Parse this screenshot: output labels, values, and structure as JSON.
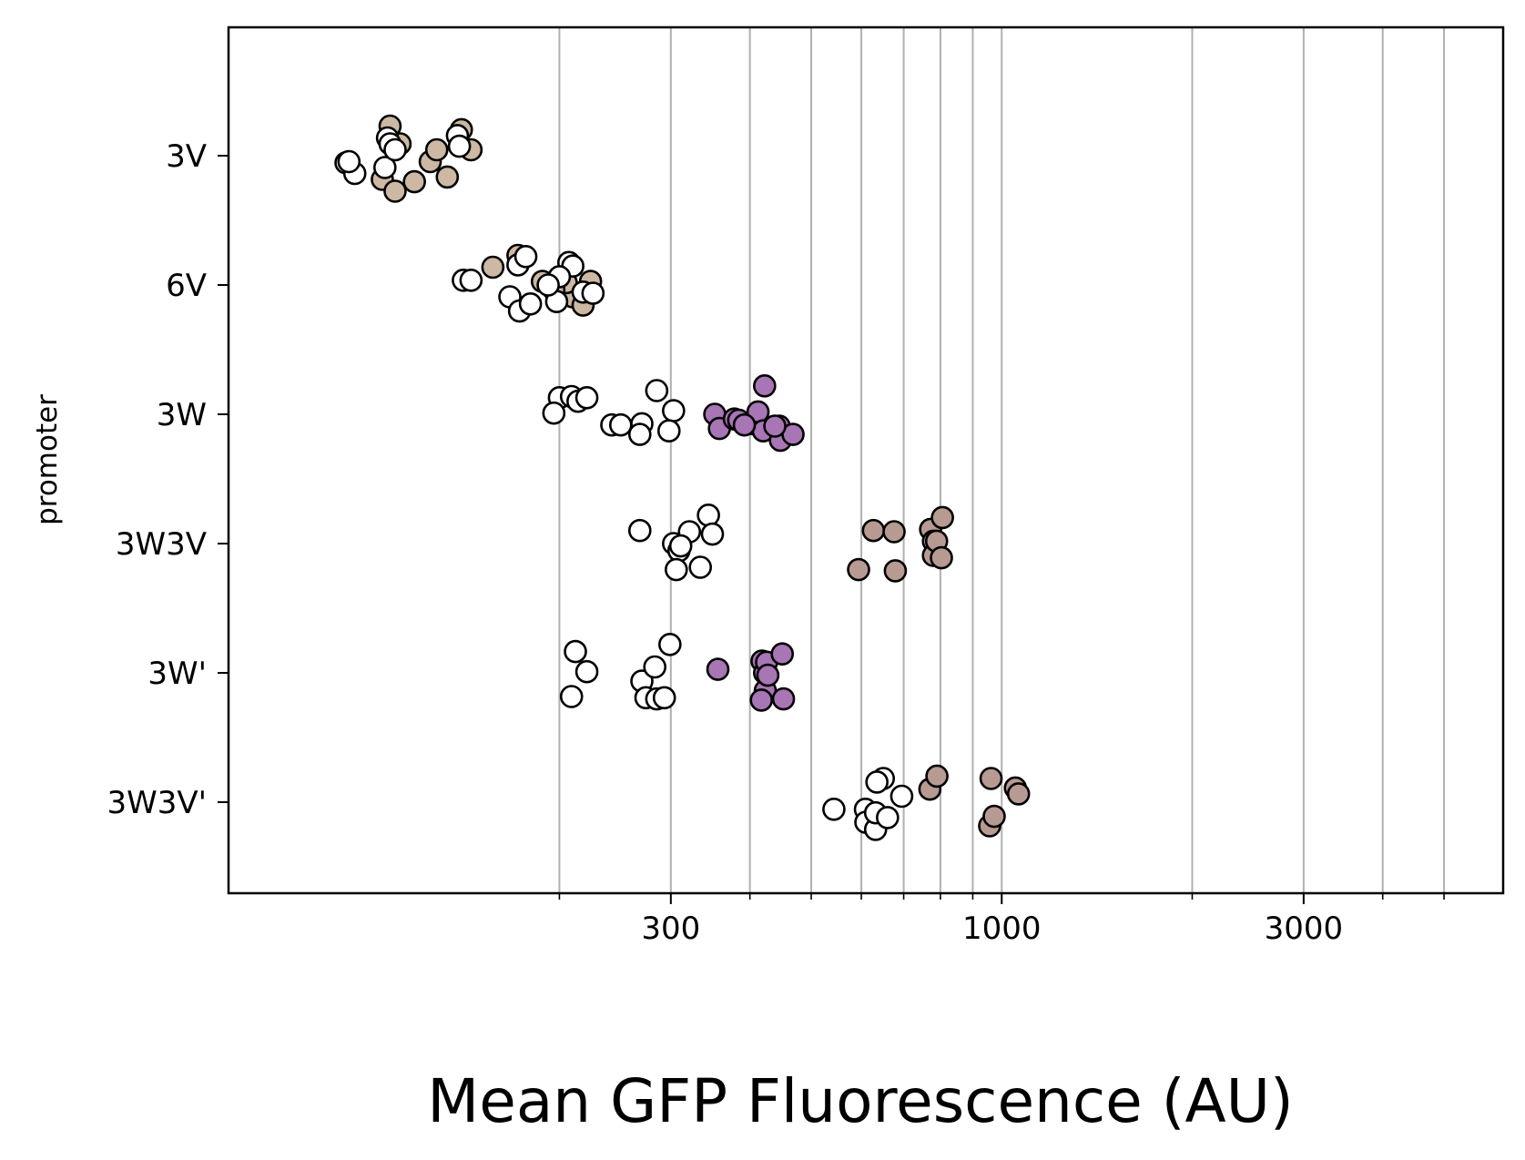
{
  "chart_data": {
    "type": "scatter",
    "title": "",
    "xlabel": "Mean GFP Fluorescence (AU)",
    "ylabel": "promoter",
    "x_scale": "log",
    "xlim": [
      60,
      6200
    ],
    "x_tick_labels": [
      "300",
      "1000",
      "3000"
    ],
    "x_ticks": [
      300,
      1000,
      3000
    ],
    "x_minor_gridlines": [
      200,
      400,
      500,
      600,
      700,
      800,
      900,
      2000,
      4000,
      5000
    ],
    "grid": "vertical gridlines at major and minor x ticks",
    "categories": [
      "3V",
      "6V",
      "3W",
      "3W3V",
      "3W'",
      "3W3V'"
    ],
    "colors": {
      "tan": "#ccb8a3",
      "purple": "#a875b5",
      "mauve": "#b79a92",
      "white": "#ffffff",
      "edge": "#000000",
      "grid": "#b0b0b0"
    },
    "series": [
      {
        "category": "3V",
        "fill": "#ccb8a3",
        "points": [
          {
            "x": 105,
            "o": -0.2
          },
          {
            "x": 112,
            "o": 0.1
          },
          {
            "x": 118,
            "o": -0.22
          },
          {
            "x": 108,
            "o": 0.25
          },
          {
            "x": 125,
            "o": -0.05
          },
          {
            "x": 128,
            "o": 0.05
          },
          {
            "x": 140,
            "o": 0.22
          },
          {
            "x": 133,
            "o": -0.18
          },
          {
            "x": 145,
            "o": 0.05
          },
          {
            "x": 110,
            "o": -0.3
          }
        ]
      },
      {
        "category": "3V",
        "fill": "#ffffff",
        "points": [
          {
            "x": 92,
            "o": -0.06
          },
          {
            "x": 95,
            "o": -0.15
          },
          {
            "x": 93,
            "o": -0.05
          },
          {
            "x": 107,
            "o": 0.15
          },
          {
            "x": 108,
            "o": 0.1
          },
          {
            "x": 106,
            "o": -0.1
          },
          {
            "x": 138,
            "o": 0.17
          },
          {
            "x": 139,
            "o": 0.08
          },
          {
            "x": 110,
            "o": 0.05
          }
        ]
      },
      {
        "category": "6V",
        "fill": "#ccb8a3",
        "points": [
          {
            "x": 157,
            "o": 0.15
          },
          {
            "x": 172,
            "o": 0.25
          },
          {
            "x": 188,
            "o": 0.03
          },
          {
            "x": 194,
            "o": 0.0
          },
          {
            "x": 210,
            "o": -0.1
          },
          {
            "x": 224,
            "o": 0.03
          },
          {
            "x": 218,
            "o": -0.17
          },
          {
            "x": 205,
            "o": 0.02
          },
          {
            "x": 196,
            "o": -0.04
          }
        ]
      },
      {
        "category": "6V",
        "fill": "#ffffff",
        "points": [
          {
            "x": 141,
            "o": 0.04
          },
          {
            "x": 145,
            "o": 0.04
          },
          {
            "x": 172,
            "o": 0.17
          },
          {
            "x": 177,
            "o": 0.24
          },
          {
            "x": 167,
            "o": -0.1
          },
          {
            "x": 173,
            "o": -0.22
          },
          {
            "x": 180,
            "o": -0.16
          },
          {
            "x": 207,
            "o": 0.19
          },
          {
            "x": 210,
            "o": 0.16
          },
          {
            "x": 200,
            "o": 0.07
          },
          {
            "x": 198,
            "o": -0.14
          },
          {
            "x": 218,
            "o": -0.06
          },
          {
            "x": 226,
            "o": -0.07
          },
          {
            "x": 192,
            "o": 0.0
          }
        ]
      },
      {
        "category": "3W",
        "fill": "#ffffff",
        "points": [
          {
            "x": 200,
            "o": 0.14
          },
          {
            "x": 196,
            "o": 0.01
          },
          {
            "x": 209,
            "o": 0.15
          },
          {
            "x": 214,
            "o": 0.11
          },
          {
            "x": 221,
            "o": 0.14
          },
          {
            "x": 242,
            "o": -0.09
          },
          {
            "x": 250,
            "o": -0.09
          },
          {
            "x": 270,
            "o": -0.08
          },
          {
            "x": 268,
            "o": -0.17
          },
          {
            "x": 285,
            "o": 0.2
          },
          {
            "x": 303,
            "o": 0.03
          },
          {
            "x": 298,
            "o": -0.14
          }
        ]
      },
      {
        "category": "3W",
        "fill": "#a875b5",
        "points": [
          {
            "x": 352,
            "o": 0.0
          },
          {
            "x": 358,
            "o": -0.12
          },
          {
            "x": 378,
            "o": -0.04
          },
          {
            "x": 384,
            "o": -0.05
          },
          {
            "x": 405,
            "o": -0.08
          },
          {
            "x": 412,
            "o": 0.02
          },
          {
            "x": 420,
            "o": -0.14
          },
          {
            "x": 422,
            "o": 0.24
          },
          {
            "x": 445,
            "o": -0.1
          },
          {
            "x": 447,
            "o": -0.22
          },
          {
            "x": 468,
            "o": -0.17
          },
          {
            "x": 438,
            "o": -0.1
          },
          {
            "x": 392,
            "o": -0.09
          }
        ]
      },
      {
        "category": "3W3V",
        "fill": "#ffffff",
        "points": [
          {
            "x": 268,
            "o": 0.11
          },
          {
            "x": 303,
            "o": 0.0
          },
          {
            "x": 309,
            "o": -0.06
          },
          {
            "x": 306,
            "o": -0.22
          },
          {
            "x": 321,
            "o": 0.1
          },
          {
            "x": 334,
            "o": -0.2
          },
          {
            "x": 344,
            "o": 0.24
          },
          {
            "x": 349,
            "o": 0.08
          },
          {
            "x": 311,
            "o": -0.02
          }
        ]
      },
      {
        "category": "3W3V",
        "fill": "#b79a92",
        "points": [
          {
            "x": 627,
            "o": 0.11
          },
          {
            "x": 594,
            "o": -0.22
          },
          {
            "x": 676,
            "o": 0.1
          },
          {
            "x": 679,
            "o": -0.23
          },
          {
            "x": 772,
            "o": 0.12
          },
          {
            "x": 780,
            "o": 0.02
          },
          {
            "x": 780,
            "o": -0.1
          },
          {
            "x": 789,
            "o": 0.02
          },
          {
            "x": 803,
            "o": -0.12
          },
          {
            "x": 806,
            "o": 0.22
          }
        ]
      },
      {
        "category": "3W'",
        "fill": "#ffffff",
        "points": [
          {
            "x": 212,
            "o": 0.18
          },
          {
            "x": 221,
            "o": 0.01
          },
          {
            "x": 209,
            "o": -0.2
          },
          {
            "x": 270,
            "o": -0.07
          },
          {
            "x": 274,
            "o": -0.21
          },
          {
            "x": 285,
            "o": -0.22
          },
          {
            "x": 293,
            "o": -0.21
          },
          {
            "x": 283,
            "o": 0.05
          },
          {
            "x": 299,
            "o": 0.24
          }
        ]
      },
      {
        "category": "3W'",
        "fill": "#a875b5",
        "points": [
          {
            "x": 356,
            "o": 0.03
          },
          {
            "x": 418,
            "o": 0.1
          },
          {
            "x": 422,
            "o": 0.0
          },
          {
            "x": 425,
            "o": 0.09
          },
          {
            "x": 423,
            "o": -0.15
          },
          {
            "x": 417,
            "o": -0.23
          },
          {
            "x": 450,
            "o": 0.16
          },
          {
            "x": 452,
            "o": -0.22
          },
          {
            "x": 427,
            "o": -0.02
          }
        ]
      },
      {
        "category": "3W3V'",
        "fill": "#ffffff",
        "points": [
          {
            "x": 543,
            "o": -0.06
          },
          {
            "x": 609,
            "o": -0.06
          },
          {
            "x": 610,
            "o": -0.17
          },
          {
            "x": 632,
            "o": -0.23
          },
          {
            "x": 632,
            "o": -0.09
          },
          {
            "x": 650,
            "o": 0.2
          },
          {
            "x": 635,
            "o": 0.17
          },
          {
            "x": 660,
            "o": -0.13
          },
          {
            "x": 695,
            "o": 0.05
          }
        ]
      },
      {
        "category": "3W3V'",
        "fill": "#b79a92",
        "points": [
          {
            "x": 770,
            "o": 0.11
          },
          {
            "x": 790,
            "o": 0.22
          },
          {
            "x": 957,
            "o": -0.2
          },
          {
            "x": 962,
            "o": 0.2
          },
          {
            "x": 973,
            "o": -0.12
          },
          {
            "x": 1051,
            "o": 0.12
          },
          {
            "x": 1063,
            "o": 0.07
          }
        ]
      }
    ]
  }
}
